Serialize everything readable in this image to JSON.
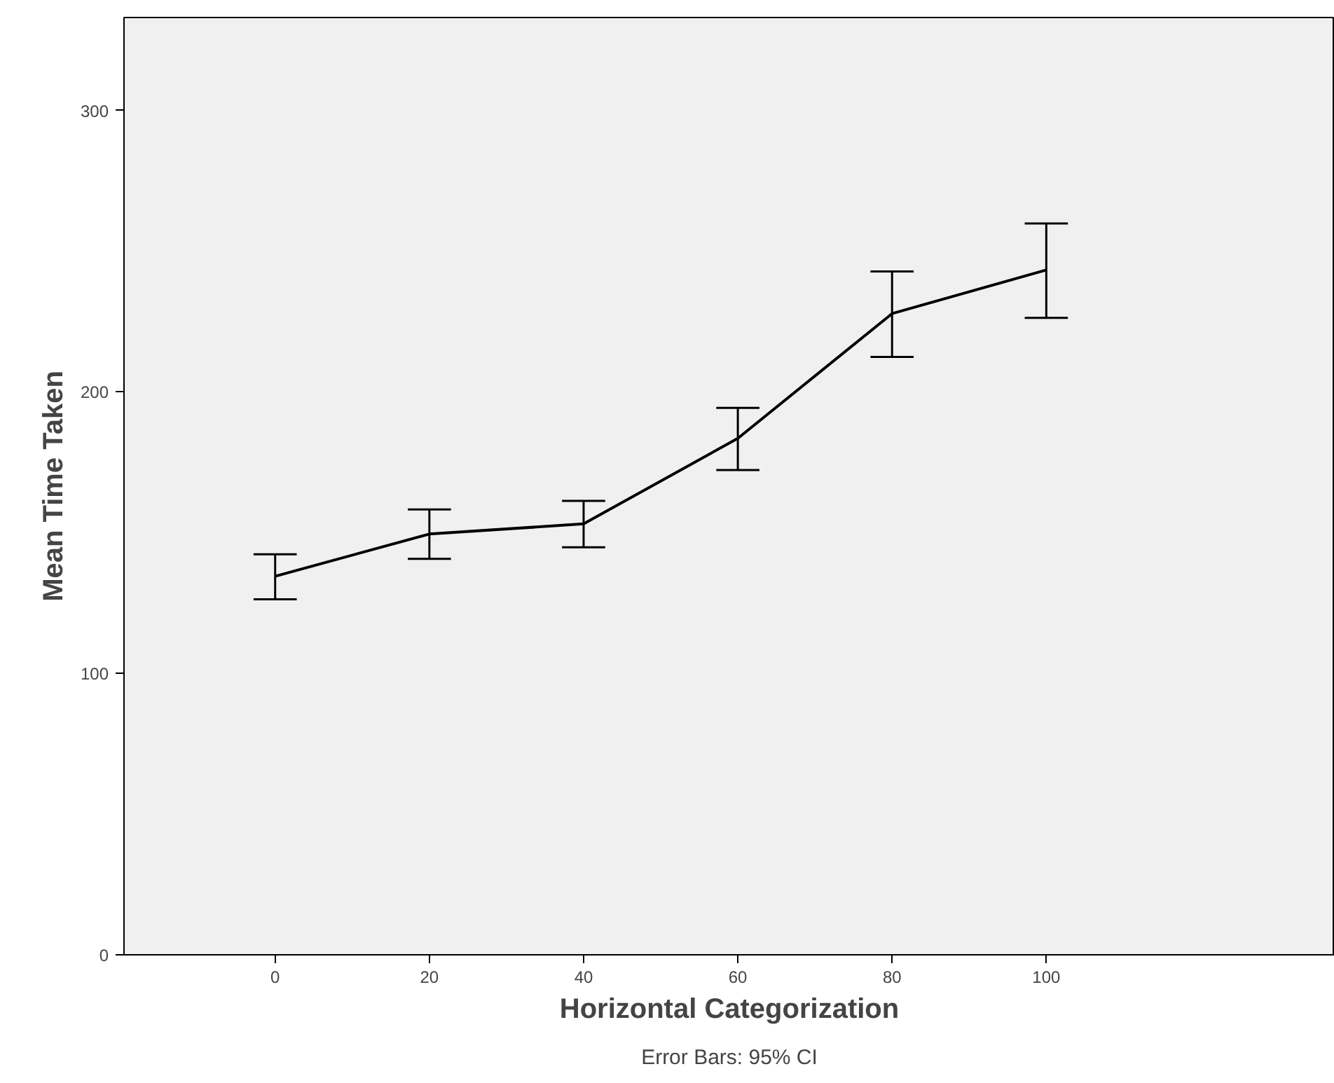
{
  "chart_data": {
    "type": "line",
    "xlabel": "Horizontal Categorization",
    "ylabel": "Mean Time Taken",
    "categories": [
      "0",
      "20",
      "40",
      "60",
      "80",
      "100"
    ],
    "values": [
      134.5,
      149.5,
      153.1,
      183.5,
      227.8,
      243.3
    ],
    "errors": [
      [
        126.3,
        142.3
      ],
      [
        140.7,
        158.2
      ],
      [
        144.8,
        161.3
      ],
      [
        172.2,
        194.3
      ],
      [
        212.4,
        242.8
      ],
      [
        226.3,
        259.8
      ]
    ],
    "color": "#000000",
    "ylim": [
      0,
      333
    ],
    "yticks": [
      0,
      100,
      200,
      300
    ],
    "grid": false,
    "marker": "none",
    "line_style": "solid",
    "annotations": [
      "Error Bars: 95% CI"
    ]
  }
}
